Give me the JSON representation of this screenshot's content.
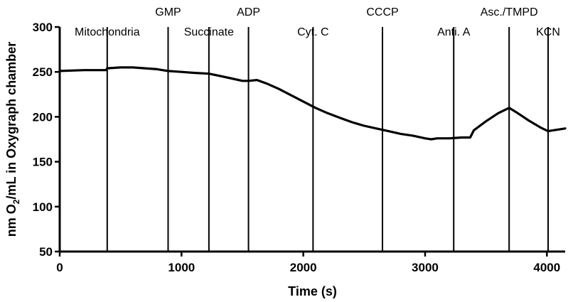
{
  "chart_data": {
    "type": "line",
    "title": "",
    "xlabel": "Time (s)",
    "ylabel": {
      "prefix": "nm O",
      "subscript": "2",
      "suffix": "/mL in Oxygraph chamber"
    },
    "xlim": [
      0,
      4150
    ],
    "ylim": [
      50,
      300
    ],
    "xticks": [
      0,
      1000,
      2000,
      3000,
      4000
    ],
    "yticks": [
      50,
      100,
      150,
      200,
      250,
      300
    ],
    "grid": false,
    "events": [
      {
        "label": "Mitochondria",
        "x": 390,
        "label_row": "lower"
      },
      {
        "label": "GMP",
        "x": 890,
        "label_row": "upper"
      },
      {
        "label": "Succinate",
        "x": 1225,
        "label_row": "lower"
      },
      {
        "label": "ADP",
        "x": 1550,
        "label_row": "upper"
      },
      {
        "label": "Cyt. C",
        "x": 2080,
        "label_row": "lower"
      },
      {
        "label": "CCCP",
        "x": 2650,
        "label_row": "upper"
      },
      {
        "label": "Anti.  A",
        "x": 3235,
        "label_row": "lower"
      },
      {
        "label": "Asc./TMPD",
        "x": 3690,
        "label_row": "upper"
      },
      {
        "label": "KCN",
        "x": 4010,
        "label_row": "lower"
      }
    ],
    "series": [
      {
        "x": [
          0,
          200,
          380,
          390,
          500,
          600,
          700,
          800,
          890,
          1000,
          1100,
          1225,
          1300,
          1400,
          1500,
          1550,
          1620,
          1700,
          1800,
          1900,
          2000,
          2100,
          2200,
          2300,
          2400,
          2500,
          2600,
          2700,
          2800,
          2900,
          3000,
          3050,
          3100,
          3200,
          3300,
          3370,
          3400,
          3500,
          3600,
          3690,
          3750,
          3850,
          3950,
          4010,
          4050,
          4150
        ],
        "y": [
          251,
          252,
          252,
          254,
          255,
          255,
          254,
          253,
          251,
          250,
          249,
          248,
          246,
          243,
          240,
          240,
          241,
          237,
          231,
          224,
          217,
          210,
          204,
          199,
          194,
          190,
          187,
          184,
          181,
          179,
          176,
          175,
          176,
          176,
          177,
          177,
          185,
          195,
          204,
          210,
          205,
          196,
          188,
          184,
          185,
          187
        ]
      }
    ]
  }
}
